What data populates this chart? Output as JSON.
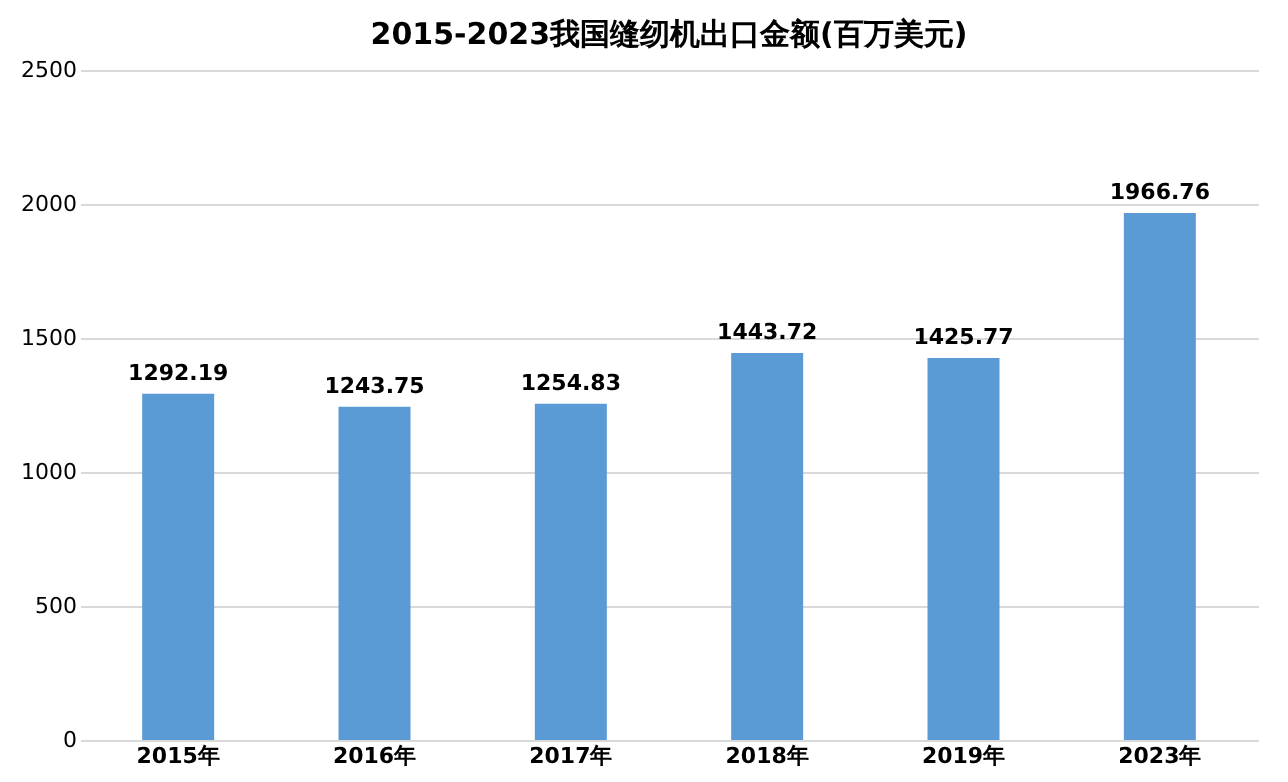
{
  "chart_data": {
    "type": "bar",
    "title": "2015-2023我国缝纫机出口金额(百万美元)",
    "categories": [
      "2015年",
      "2016年",
      "2017年",
      "2018年",
      "2019年",
      "2023年"
    ],
    "values": [
      1292.19,
      1243.75,
      1254.83,
      1443.72,
      1425.77,
      1966.76
    ],
    "color": "#5b9bd5",
    "ylim": [
      0,
      2500
    ],
    "yticks": [
      0,
      500,
      1000,
      1500,
      2000,
      2500
    ],
    "grid": "y",
    "data_labels": true
  }
}
